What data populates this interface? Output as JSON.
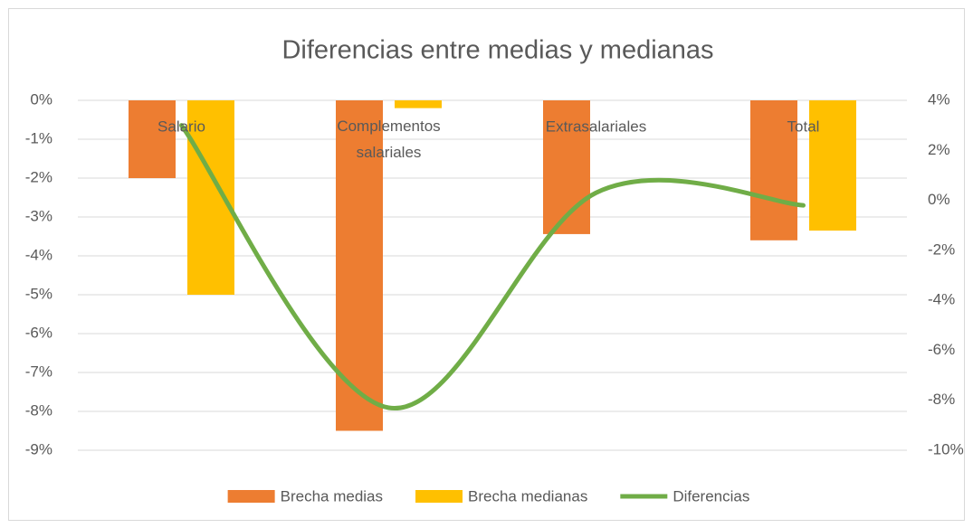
{
  "chart_data": {
    "type": "bar",
    "title": "Diferencias entre medias y medianas",
    "categories": [
      "Salario",
      "Complementos salariales",
      "Extrasalariales",
      "Total"
    ],
    "series": [
      {
        "name": "Brecha medias",
        "color": "#ed7d31",
        "type": "bar",
        "values": [
          -2.0,
          -8.5,
          -3.44,
          -3.6
        ]
      },
      {
        "name": "Brecha medianas",
        "color": "#ffc000",
        "type": "bar",
        "values": [
          -5.0,
          -0.2,
          null,
          -3.35
        ]
      },
      {
        "name": "Diferencias",
        "color": "#70ad47",
        "type": "line",
        "axis": "y2",
        "smooth": true,
        "values": [
          3.0,
          -8.3,
          0.3,
          -0.2
        ]
      }
    ],
    "ylim": [
      -9,
      0
    ],
    "yticks": [
      {
        "value": 0,
        "label": "0%"
      },
      {
        "value": -1,
        "label": "-1%"
      },
      {
        "value": -2,
        "label": "-2%"
      },
      {
        "value": -3,
        "label": "-3%"
      },
      {
        "value": -4,
        "label": "-4%"
      },
      {
        "value": -5,
        "label": "-5%"
      },
      {
        "value": -6,
        "label": "-6%"
      },
      {
        "value": -7,
        "label": "-7%"
      },
      {
        "value": -8,
        "label": "-8%"
      },
      {
        "value": -9,
        "label": "-9%"
      }
    ],
    "y2lim": [
      -10,
      4
    ],
    "y2ticks": [
      {
        "value": 4,
        "label": "4%"
      },
      {
        "value": 2,
        "label": "2%"
      },
      {
        "value": 0,
        "label": "0%"
      },
      {
        "value": -2,
        "label": "-2%"
      },
      {
        "value": -4,
        "label": "-4%"
      },
      {
        "value": -6,
        "label": "-6%"
      },
      {
        "value": -8,
        "label": "-8%"
      },
      {
        "value": -10,
        "label": "-10%"
      }
    ],
    "grid": true,
    "legend": "bottom"
  }
}
